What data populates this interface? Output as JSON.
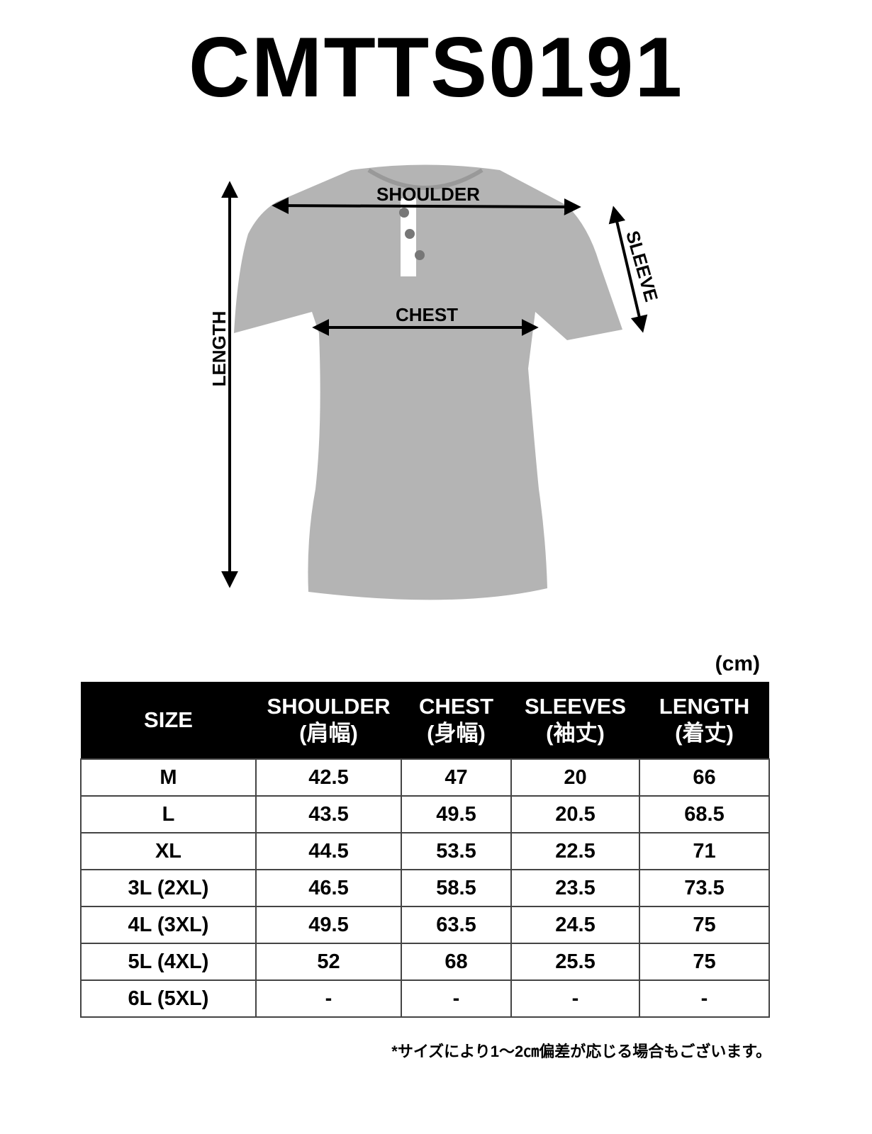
{
  "title": "CMTTS0191",
  "figure": {
    "shoulder_label": "SHOULDER",
    "chest_label": "CHEST",
    "sleeve_label": "SLEEVE",
    "length_label": "LENGTH",
    "shirt_color": "#b4b4b4"
  },
  "unit": "(cm)",
  "table": {
    "headers": [
      {
        "en": "SIZE",
        "jp": ""
      },
      {
        "en": "SHOULDER",
        "jp": "(肩幅)"
      },
      {
        "en": "CHEST",
        "jp": "(身幅)"
      },
      {
        "en": "SLEEVES",
        "jp": "(袖丈)"
      },
      {
        "en": "LENGTH",
        "jp": "(着丈)"
      }
    ],
    "rows": [
      [
        "M",
        "42.5",
        "47",
        "20",
        "66"
      ],
      [
        "L",
        "43.5",
        "49.5",
        "20.5",
        "68.5"
      ],
      [
        "XL",
        "44.5",
        "53.5",
        "22.5",
        "71"
      ],
      [
        "3L (2XL)",
        "46.5",
        "58.5",
        "23.5",
        "73.5"
      ],
      [
        "4L (3XL)",
        "49.5",
        "63.5",
        "24.5",
        "75"
      ],
      [
        "5L (4XL)",
        "52",
        "68",
        "25.5",
        "75"
      ],
      [
        "6L (5XL)",
        "-",
        "-",
        "-",
        "-"
      ]
    ]
  },
  "note": "*サイズにより1～2㎝偏差が応じる場合もございます。"
}
